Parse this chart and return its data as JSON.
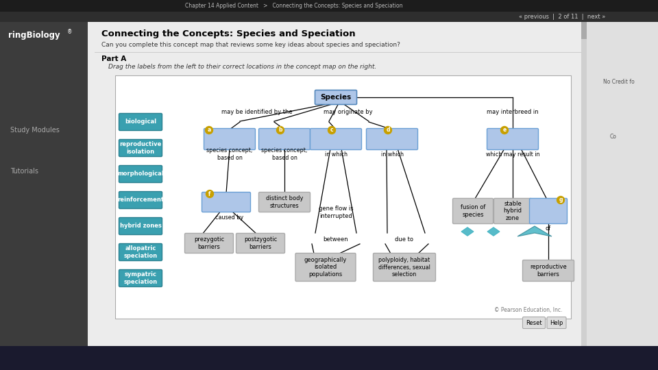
{
  "title": "Connecting the Concepts: Species and Speciation",
  "subtitle": "Can you complete this concept map that reviews some key ideas about species and speciation?",
  "part": "Part A",
  "drag_instruction": "Drag the labels from the left to their correct locations in the concept map on the right.",
  "breadcrumb": "Chapter 14 Applied Content   >   Connecting the Concepts: Species and Speciation",
  "nav_text": "« previous  |  2 of 11  |  next »",
  "copyright": "© Pearson Education, Inc.",
  "left_labels": [
    "biological",
    "reproductive\nisolation",
    "morphological",
    "reinforcement",
    "hybrid zones",
    "allopatric\nspeciation",
    "sympatric\nspeciation"
  ],
  "bg_outer": "#9a9a9a",
  "bg_header_dark": "#1c1c1c",
  "bg_nav_dark": "#2e2e2e",
  "bg_left_sidebar": "#3c3c3c",
  "bg_content": "#ececec",
  "bg_right_sidebar": "#e0e0e0",
  "bg_map_white": "#ffffff",
  "bg_map_border": "#bbbbbb",
  "label_teal": "#3aa0b0",
  "label_teal_dark": "#2a8090",
  "box_blue_fill": "#aec6e8",
  "box_blue_border": "#6a9fd4",
  "box_gray_fill": "#c8c8c8",
  "box_gray_border": "#aaaaaa",
  "badge_gold": "#c8a000",
  "taskbar_color": "#1a1a2e"
}
